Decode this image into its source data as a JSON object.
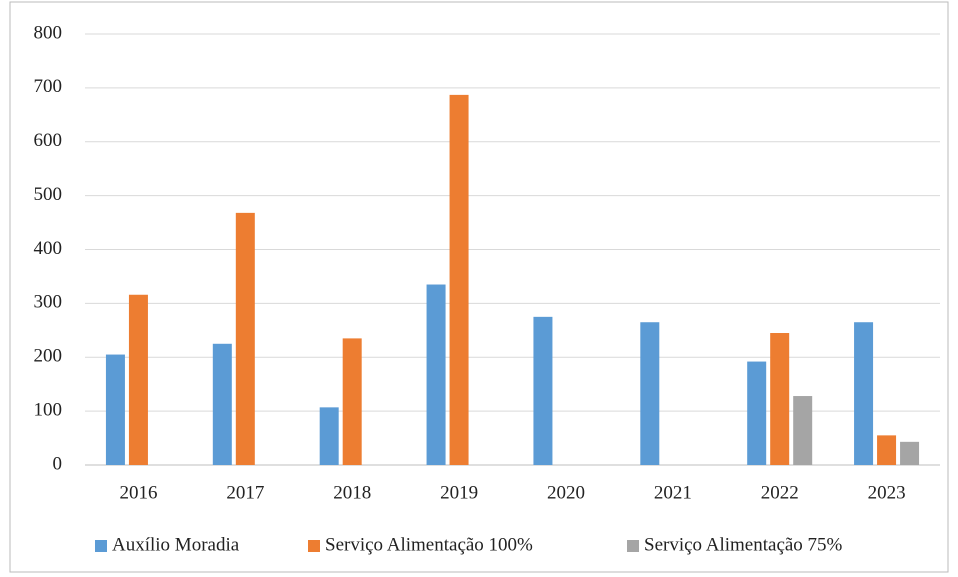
{
  "chart_data": {
    "type": "bar",
    "categories": [
      "2016",
      "2017",
      "2018",
      "2019",
      "2020",
      "2021",
      "2022",
      "2023"
    ],
    "series": [
      {
        "name": "Auxílio Moradia",
        "color": "#5b9bd5",
        "values": [
          205,
          225,
          107,
          335,
          275,
          265,
          192,
          265
        ]
      },
      {
        "name": "Serviço Alimentação 100%",
        "color": "#ed7d31",
        "values": [
          316,
          468,
          235,
          687,
          null,
          null,
          245,
          55
        ]
      },
      {
        "name": "Serviço Alimentação 75%",
        "color": "#a5a5a5",
        "values": [
          null,
          null,
          null,
          null,
          null,
          null,
          128,
          43
        ]
      }
    ],
    "ylim": [
      0,
      800
    ],
    "yticks": [
      0,
      100,
      200,
      300,
      400,
      500,
      600,
      700,
      800
    ],
    "grid": true,
    "legend": "bottom"
  }
}
